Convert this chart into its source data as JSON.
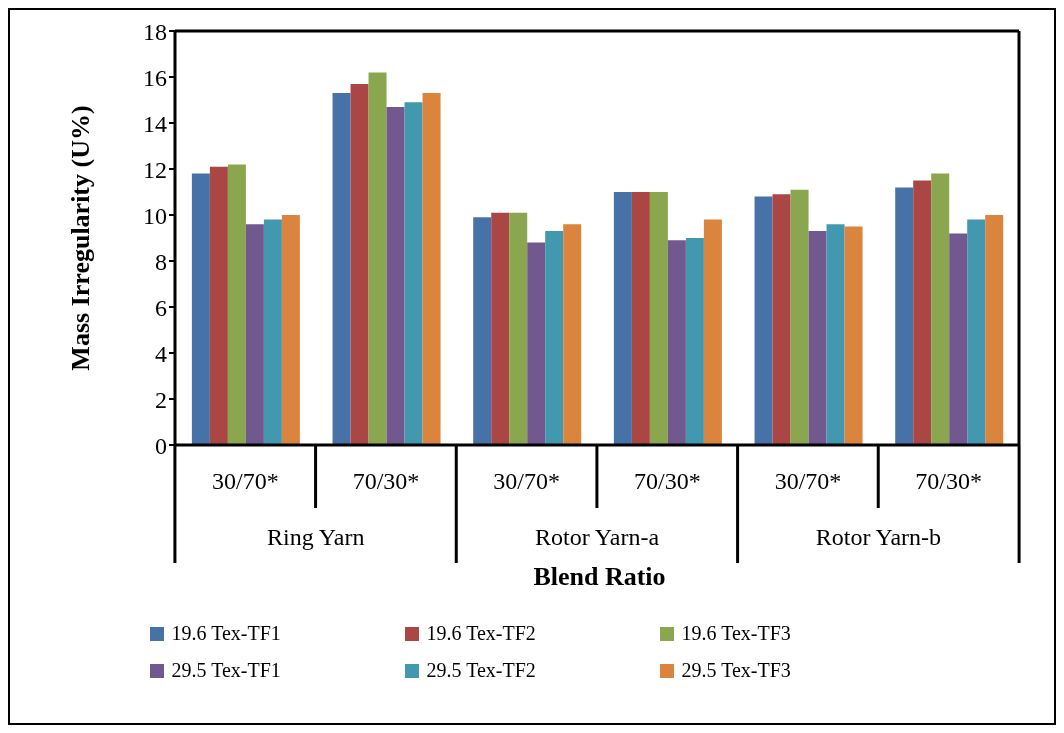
{
  "chart_data": {
    "type": "bar",
    "ylabel": "Mass Irregularity (U%)",
    "xlabel": "Blend Ratio",
    "categories": [
      "30/70*",
      "70/30*",
      "30/70*",
      "70/30*",
      "30/70*",
      "70/30*"
    ],
    "annotations": [
      "Ring Yarn",
      "Rotor Yarn-a",
      "Rotor Yarn-b"
    ],
    "series": [
      {
        "name": "19.6 Tex-TF1",
        "color": "#4672a8",
        "values": [
          11.8,
          15.3,
          9.9,
          11.0,
          10.8,
          11.2
        ]
      },
      {
        "name": "19.6 Tex-TF2",
        "color": "#aa4644",
        "values": [
          12.1,
          15.7,
          10.1,
          11.0,
          10.9,
          11.5
        ]
      },
      {
        "name": "19.6 Tex-TF3",
        "color": "#8aa64e",
        "values": [
          12.2,
          16.2,
          10.1,
          11.0,
          11.1,
          11.8
        ]
      },
      {
        "name": "29.5 Tex-TF1",
        "color": "#71588f",
        "values": [
          9.6,
          14.7,
          8.8,
          8.9,
          9.3,
          9.2
        ]
      },
      {
        "name": "29.5 Tex-TF2",
        "color": "#4298af",
        "values": [
          9.8,
          14.9,
          9.3,
          9.0,
          9.6,
          9.8
        ]
      },
      {
        "name": "29.5 Tex-TF3",
        "color": "#db843d",
        "values": [
          10.0,
          15.3,
          9.6,
          9.8,
          9.5,
          10.0
        ]
      }
    ],
    "ylim": [
      0,
      18
    ],
    "yticks": [
      0,
      2,
      4,
      6,
      8,
      10,
      12,
      14,
      16,
      18
    ],
    "legend": "bottom"
  }
}
